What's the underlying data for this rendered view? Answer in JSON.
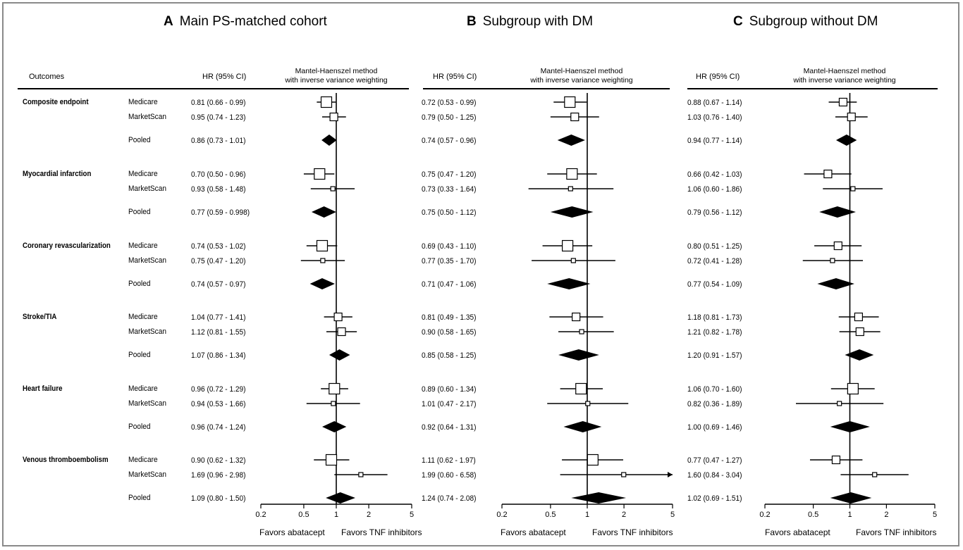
{
  "panels": [
    {
      "letter": "A",
      "title": "Main PS-matched cohort",
      "hr_header": "HR (95% CI)",
      "method_line1": "Mantel-Haenszel method",
      "method_line2": "with inverse variance weighting",
      "favors_left": "Favors abatacept",
      "favors_right": "Favors TNF inhibitors",
      "axis_ticks": [
        "0.2",
        "0.5",
        "1",
        "2",
        "5"
      ]
    },
    {
      "letter": "B",
      "title": "Subgroup with DM",
      "hr_header": "HR (95% CI)",
      "method_line1": "Mantel-Haenszel method",
      "method_line2": "with inverse variance weighting",
      "favors_left": "Favors abatacept",
      "favors_right": "Favors TNF inhibitors",
      "axis_ticks": [
        "0.2",
        "0.5",
        "1",
        "2",
        "5"
      ]
    },
    {
      "letter": "C",
      "title": "Subgroup without DM",
      "hr_header": "HR (95% CI)",
      "method_line1": "Mantel-Haenszel method",
      "method_line2": "with inverse variance weighting",
      "favors_left": "Favors abatacept",
      "favors_right": "Favors TNF inhibitors",
      "axis_ticks": [
        "0.2",
        "0.5",
        "1",
        "2",
        "5"
      ]
    }
  ],
  "outcomes_header": "Outcomes",
  "outcomes": [
    {
      "name": "Composite endpoint",
      "sources": [
        "Medicare",
        "MarketScan",
        "Pooled"
      ]
    },
    {
      "name": "Myocardial infarction",
      "sources": [
        "Medicare",
        "MarketScan",
        "Pooled"
      ]
    },
    {
      "name": "Coronary revascularization",
      "sources": [
        "Medicare",
        "MarketScan",
        "Pooled"
      ]
    },
    {
      "name": "Stroke/TIA",
      "sources": [
        "Medicare",
        "MarketScan",
        "Pooled"
      ]
    },
    {
      "name": "Heart  failure",
      "sources": [
        "Medicare",
        "MarketScan",
        "Pooled"
      ]
    },
    {
      "name": "Venous thromboembolism",
      "sources": [
        "Medicare",
        "MarketScan",
        "Pooled"
      ]
    }
  ],
  "chart_data": {
    "type": "forest",
    "x_scale": "log",
    "xlim": [
      0.2,
      5
    ],
    "reference_line": 1,
    "panels": [
      {
        "title": "Main PS-matched cohort",
        "rows": [
          [
            {
              "label": "0.81 (0.66 - 0.99)",
              "hr": 0.81,
              "lo": 0.66,
              "hi": 0.99,
              "box": "large"
            },
            {
              "label": "0.95 (0.74 - 1.23)",
              "hr": 0.95,
              "lo": 0.74,
              "hi": 1.23,
              "box": "medium"
            },
            {
              "label": "0.86 (0.73 - 1.01)",
              "hr": 0.86,
              "lo": 0.73,
              "hi": 1.01,
              "box": "pooled"
            }
          ],
          [
            {
              "label": "0.70 (0.50 - 0.96)",
              "hr": 0.7,
              "lo": 0.5,
              "hi": 0.96,
              "box": "large"
            },
            {
              "label": "0.93 (0.58 - 1.48)",
              "hr": 0.93,
              "lo": 0.58,
              "hi": 1.48,
              "box": "small"
            },
            {
              "label": "0.77 (0.59 - 0.998)",
              "hr": 0.77,
              "lo": 0.59,
              "hi": 0.998,
              "box": "pooled"
            }
          ],
          [
            {
              "label": "0.74 (0.53 - 1.02)",
              "hr": 0.74,
              "lo": 0.53,
              "hi": 1.02,
              "box": "large"
            },
            {
              "label": "0.75 (0.47 - 1.20)",
              "hr": 0.75,
              "lo": 0.47,
              "hi": 1.2,
              "box": "small"
            },
            {
              "label": "0.74 (0.57 - 0.97)",
              "hr": 0.74,
              "lo": 0.57,
              "hi": 0.97,
              "box": "pooled"
            }
          ],
          [
            {
              "label": "1.04 (0.77 - 1.41)",
              "hr": 1.04,
              "lo": 0.77,
              "hi": 1.41,
              "box": "medium"
            },
            {
              "label": "1.12 (0.81 - 1.55)",
              "hr": 1.12,
              "lo": 0.81,
              "hi": 1.55,
              "box": "medium"
            },
            {
              "label": "1.07 (0.86 - 1.34)",
              "hr": 1.07,
              "lo": 0.86,
              "hi": 1.34,
              "box": "pooled"
            }
          ],
          [
            {
              "label": "0.96 (0.72 - 1.29)",
              "hr": 0.96,
              "lo": 0.72,
              "hi": 1.29,
              "box": "large"
            },
            {
              "label": "0.94 (0.53 - 1.66)",
              "hr": 0.94,
              "lo": 0.53,
              "hi": 1.66,
              "box": "small"
            },
            {
              "label": "0.96 (0.74 - 1.24)",
              "hr": 0.96,
              "lo": 0.74,
              "hi": 1.24,
              "box": "pooled"
            }
          ],
          [
            {
              "label": "0.90 (0.62 - 1.32)",
              "hr": 0.9,
              "lo": 0.62,
              "hi": 1.32,
              "box": "large"
            },
            {
              "label": "1.69 (0.96 - 2.98)",
              "hr": 1.69,
              "lo": 0.96,
              "hi": 2.98,
              "box": "small"
            },
            {
              "label": "1.09 (0.80 - 1.50)",
              "hr": 1.09,
              "lo": 0.8,
              "hi": 1.5,
              "box": "pooled"
            }
          ]
        ]
      },
      {
        "title": "Subgroup with DM",
        "rows": [
          [
            {
              "label": "0.72 (0.53 - 0.99)",
              "hr": 0.72,
              "lo": 0.53,
              "hi": 0.99,
              "box": "large"
            },
            {
              "label": "0.79 (0.50 - 1.25)",
              "hr": 0.79,
              "lo": 0.5,
              "hi": 1.25,
              "box": "medium"
            },
            {
              "label": "0.74 (0.57 - 0.96)",
              "hr": 0.74,
              "lo": 0.57,
              "hi": 0.96,
              "box": "pooled"
            }
          ],
          [
            {
              "label": "0.75 (0.47 - 1.20)",
              "hr": 0.75,
              "lo": 0.47,
              "hi": 1.2,
              "box": "large"
            },
            {
              "label": "0.73 (0.33 - 1.64)",
              "hr": 0.73,
              "lo": 0.33,
              "hi": 1.64,
              "box": "small"
            },
            {
              "label": "0.75 (0.50 - 1.12)",
              "hr": 0.75,
              "lo": 0.5,
              "hi": 1.12,
              "box": "pooled"
            }
          ],
          [
            {
              "label": "0.69 (0.43 - 1.10)",
              "hr": 0.69,
              "lo": 0.43,
              "hi": 1.1,
              "box": "large"
            },
            {
              "label": "0.77 (0.35 - 1.70)",
              "hr": 0.77,
              "lo": 0.35,
              "hi": 1.7,
              "box": "small"
            },
            {
              "label": "0.71 (0.47 - 1.06)",
              "hr": 0.71,
              "lo": 0.47,
              "hi": 1.06,
              "box": "pooled"
            }
          ],
          [
            {
              "label": "0.81 (0.49 - 1.35)",
              "hr": 0.81,
              "lo": 0.49,
              "hi": 1.35,
              "box": "medium"
            },
            {
              "label": "0.90 (0.58 - 1.65)",
              "hr": 0.9,
              "lo": 0.58,
              "hi": 1.65,
              "box": "small"
            },
            {
              "label": "0.85 (0.58 - 1.25)",
              "hr": 0.85,
              "lo": 0.58,
              "hi": 1.25,
              "box": "pooled"
            }
          ],
          [
            {
              "label": "0.89 (0.60 - 1.34)",
              "hr": 0.89,
              "lo": 0.6,
              "hi": 1.34,
              "box": "large"
            },
            {
              "label": "1.01 (0.47 - 2.17)",
              "hr": 1.01,
              "lo": 0.47,
              "hi": 2.17,
              "box": "small"
            },
            {
              "label": "0.92 (0.64 - 1.31)",
              "hr": 0.92,
              "lo": 0.64,
              "hi": 1.31,
              "box": "pooled"
            }
          ],
          [
            {
              "label": "1.11 (0.62 - 1.97)",
              "hr": 1.11,
              "lo": 0.62,
              "hi": 1.97,
              "box": "large"
            },
            {
              "label": "1.99 (0.60 - 6.58)",
              "hr": 1.99,
              "lo": 0.6,
              "hi": 6.58,
              "box": "small"
            },
            {
              "label": "1.24 (0.74 - 2.08)",
              "hr": 1.24,
              "lo": 0.74,
              "hi": 2.08,
              "box": "pooled"
            }
          ]
        ]
      },
      {
        "title": "Subgroup without DM",
        "rows": [
          [
            {
              "label": "0.88 (0.67 - 1.14)",
              "hr": 0.88,
              "lo": 0.67,
              "hi": 1.14,
              "box": "medium"
            },
            {
              "label": "1.03 (0.76 - 1.40)",
              "hr": 1.03,
              "lo": 0.76,
              "hi": 1.4,
              "box": "medium"
            },
            {
              "label": "0.94 (0.77 - 1.14)",
              "hr": 0.94,
              "lo": 0.77,
              "hi": 1.14,
              "box": "pooled"
            }
          ],
          [
            {
              "label": "0.66 (0.42 - 1.03)",
              "hr": 0.66,
              "lo": 0.42,
              "hi": 1.03,
              "box": "medium"
            },
            {
              "label": "1.06 (0.60 - 1.86)",
              "hr": 1.06,
              "lo": 0.6,
              "hi": 1.86,
              "box": "small"
            },
            {
              "label": "0.79 (0.56 - 1.12)",
              "hr": 0.79,
              "lo": 0.56,
              "hi": 1.12,
              "box": "pooled"
            }
          ],
          [
            {
              "label": "0.80 (0.51 - 1.25)",
              "hr": 0.8,
              "lo": 0.51,
              "hi": 1.25,
              "box": "medium"
            },
            {
              "label": "0.72 (0.41 - 1.28)",
              "hr": 0.72,
              "lo": 0.41,
              "hi": 1.28,
              "box": "small"
            },
            {
              "label": "0.77 (0.54 - 1.09)",
              "hr": 0.77,
              "lo": 0.54,
              "hi": 1.09,
              "box": "pooled"
            }
          ],
          [
            {
              "label": "1.18 (0.81 - 1.73)",
              "hr": 1.18,
              "lo": 0.81,
              "hi": 1.73,
              "box": "medium"
            },
            {
              "label": "1.21 (0.82 - 1.78)",
              "hr": 1.21,
              "lo": 0.82,
              "hi": 1.78,
              "box": "medium"
            },
            {
              "label": "1.20 (0.91 - 1.57)",
              "hr": 1.2,
              "lo": 0.91,
              "hi": 1.57,
              "box": "pooled"
            }
          ],
          [
            {
              "label": "1.06 (0.70 - 1.60)",
              "hr": 1.06,
              "lo": 0.7,
              "hi": 1.6,
              "box": "large"
            },
            {
              "label": "0.82 (0.36 - 1.89)",
              "hr": 0.82,
              "lo": 0.36,
              "hi": 1.89,
              "box": "small"
            },
            {
              "label": "1.00 (0.69 - 1.46)",
              "hr": 1.0,
              "lo": 0.69,
              "hi": 1.46,
              "box": "pooled"
            }
          ],
          [
            {
              "label": "0.77 (0.47 - 1.27)",
              "hr": 0.77,
              "lo": 0.47,
              "hi": 1.27,
              "box": "medium"
            },
            {
              "label": "1.60 (0.84 - 3.04)",
              "hr": 1.6,
              "lo": 0.84,
              "hi": 3.04,
              "box": "small"
            },
            {
              "label": "1.02 (0.69 - 1.51)",
              "hr": 1.02,
              "lo": 0.69,
              "hi": 1.51,
              "box": "pooled"
            }
          ]
        ]
      }
    ]
  }
}
